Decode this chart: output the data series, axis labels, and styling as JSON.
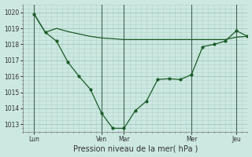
{
  "xlabel": "Pression niveau de la mer( hPa )",
  "ylim": [
    1012.5,
    1020.5
  ],
  "yticks": [
    1013,
    1014,
    1015,
    1016,
    1017,
    1018,
    1019,
    1020
  ],
  "bg_color": "#cce8e0",
  "grid_color_minor": "#b0d4cc",
  "grid_color_major": "#a0c8bf",
  "line_color": "#1a5c28",
  "xlim": [
    0,
    20
  ],
  "day_vlines": [
    1,
    7,
    9,
    15,
    19
  ],
  "day_labels": [
    "Lun",
    "Ven",
    "Mar",
    "Mer",
    "Jeu"
  ],
  "trend_x": [
    1,
    2,
    3,
    4,
    5,
    6,
    7,
    8,
    9,
    10,
    11,
    12,
    13,
    14,
    15,
    16,
    17,
    18,
    19,
    20
  ],
  "trend_y": [
    1019.9,
    1018.75,
    1019.0,
    1018.8,
    1018.65,
    1018.5,
    1018.4,
    1018.35,
    1018.3,
    1018.3,
    1018.3,
    1018.3,
    1018.3,
    1018.3,
    1018.3,
    1018.3,
    1018.3,
    1018.3,
    1018.45,
    1018.5
  ],
  "forecast_x": [
    1,
    2,
    3,
    4,
    5,
    6,
    7,
    8,
    9,
    10,
    11,
    12,
    13,
    14,
    15,
    16,
    17,
    18,
    19,
    20
  ],
  "forecast_y": [
    1019.9,
    1018.75,
    1018.2,
    1016.9,
    1016.0,
    1015.2,
    1013.7,
    1012.75,
    1012.75,
    1013.85,
    1014.45,
    1015.8,
    1015.85,
    1015.8,
    1016.1,
    1017.85,
    1018.0,
    1018.2,
    1018.85,
    1018.5
  ],
  "tick_fontsize": 5.5,
  "xlabel_fontsize": 7.0
}
